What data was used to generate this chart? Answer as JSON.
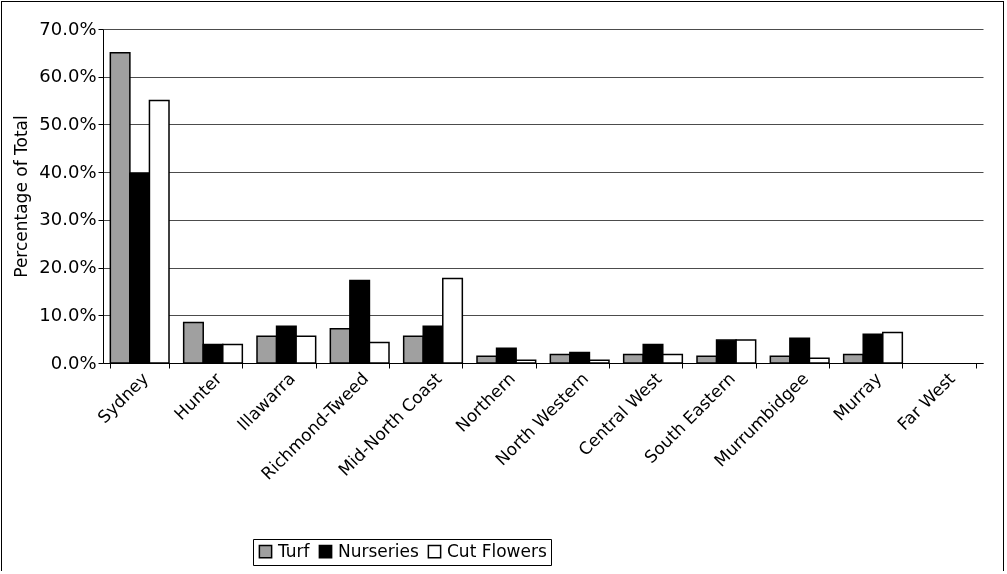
{
  "chart_data": {
    "type": "bar",
    "ylabel": "Percentage of Total",
    "categories": [
      "Sydney",
      "Hunter",
      "Illawarra",
      "Richmond-Tweed",
      "Mid-North Coast",
      "Northern",
      "North Western",
      "Central West",
      "South Eastern",
      "Murrumbidgee",
      "Murray",
      "Far West"
    ],
    "series": [
      {
        "name": "Turf",
        "color": "#a0a0a0",
        "values": [
          65.0,
          8.5,
          5.6,
          7.2,
          5.6,
          1.4,
          1.8,
          1.8,
          1.4,
          1.4,
          1.8,
          null
        ]
      },
      {
        "name": "Nurseries",
        "color": "#000000",
        "values": [
          39.7,
          3.9,
          7.7,
          17.3,
          7.7,
          3.1,
          2.2,
          3.9,
          4.8,
          5.2,
          6.0,
          null
        ]
      },
      {
        "name": "Cut Flowers",
        "color": "#ffffff",
        "values": [
          55.0,
          3.9,
          5.6,
          4.3,
          17.7,
          0.6,
          0.6,
          1.8,
          4.8,
          1.0,
          6.4,
          null
        ]
      }
    ],
    "ylim": [
      0,
      70
    ],
    "yticks": [
      {
        "value": 0,
        "label": "0.0%"
      },
      {
        "value": 10,
        "label": "10.0%"
      },
      {
        "value": 20,
        "label": "20.0%"
      },
      {
        "value": 30,
        "label": "30.0%"
      },
      {
        "value": 40,
        "label": "40.0%"
      },
      {
        "value": 50,
        "label": "50.0%"
      },
      {
        "value": 60,
        "label": "60.0%"
      },
      {
        "value": 70,
        "label": "70.0%"
      }
    ],
    "grid": "y",
    "legend": "bottom"
  }
}
